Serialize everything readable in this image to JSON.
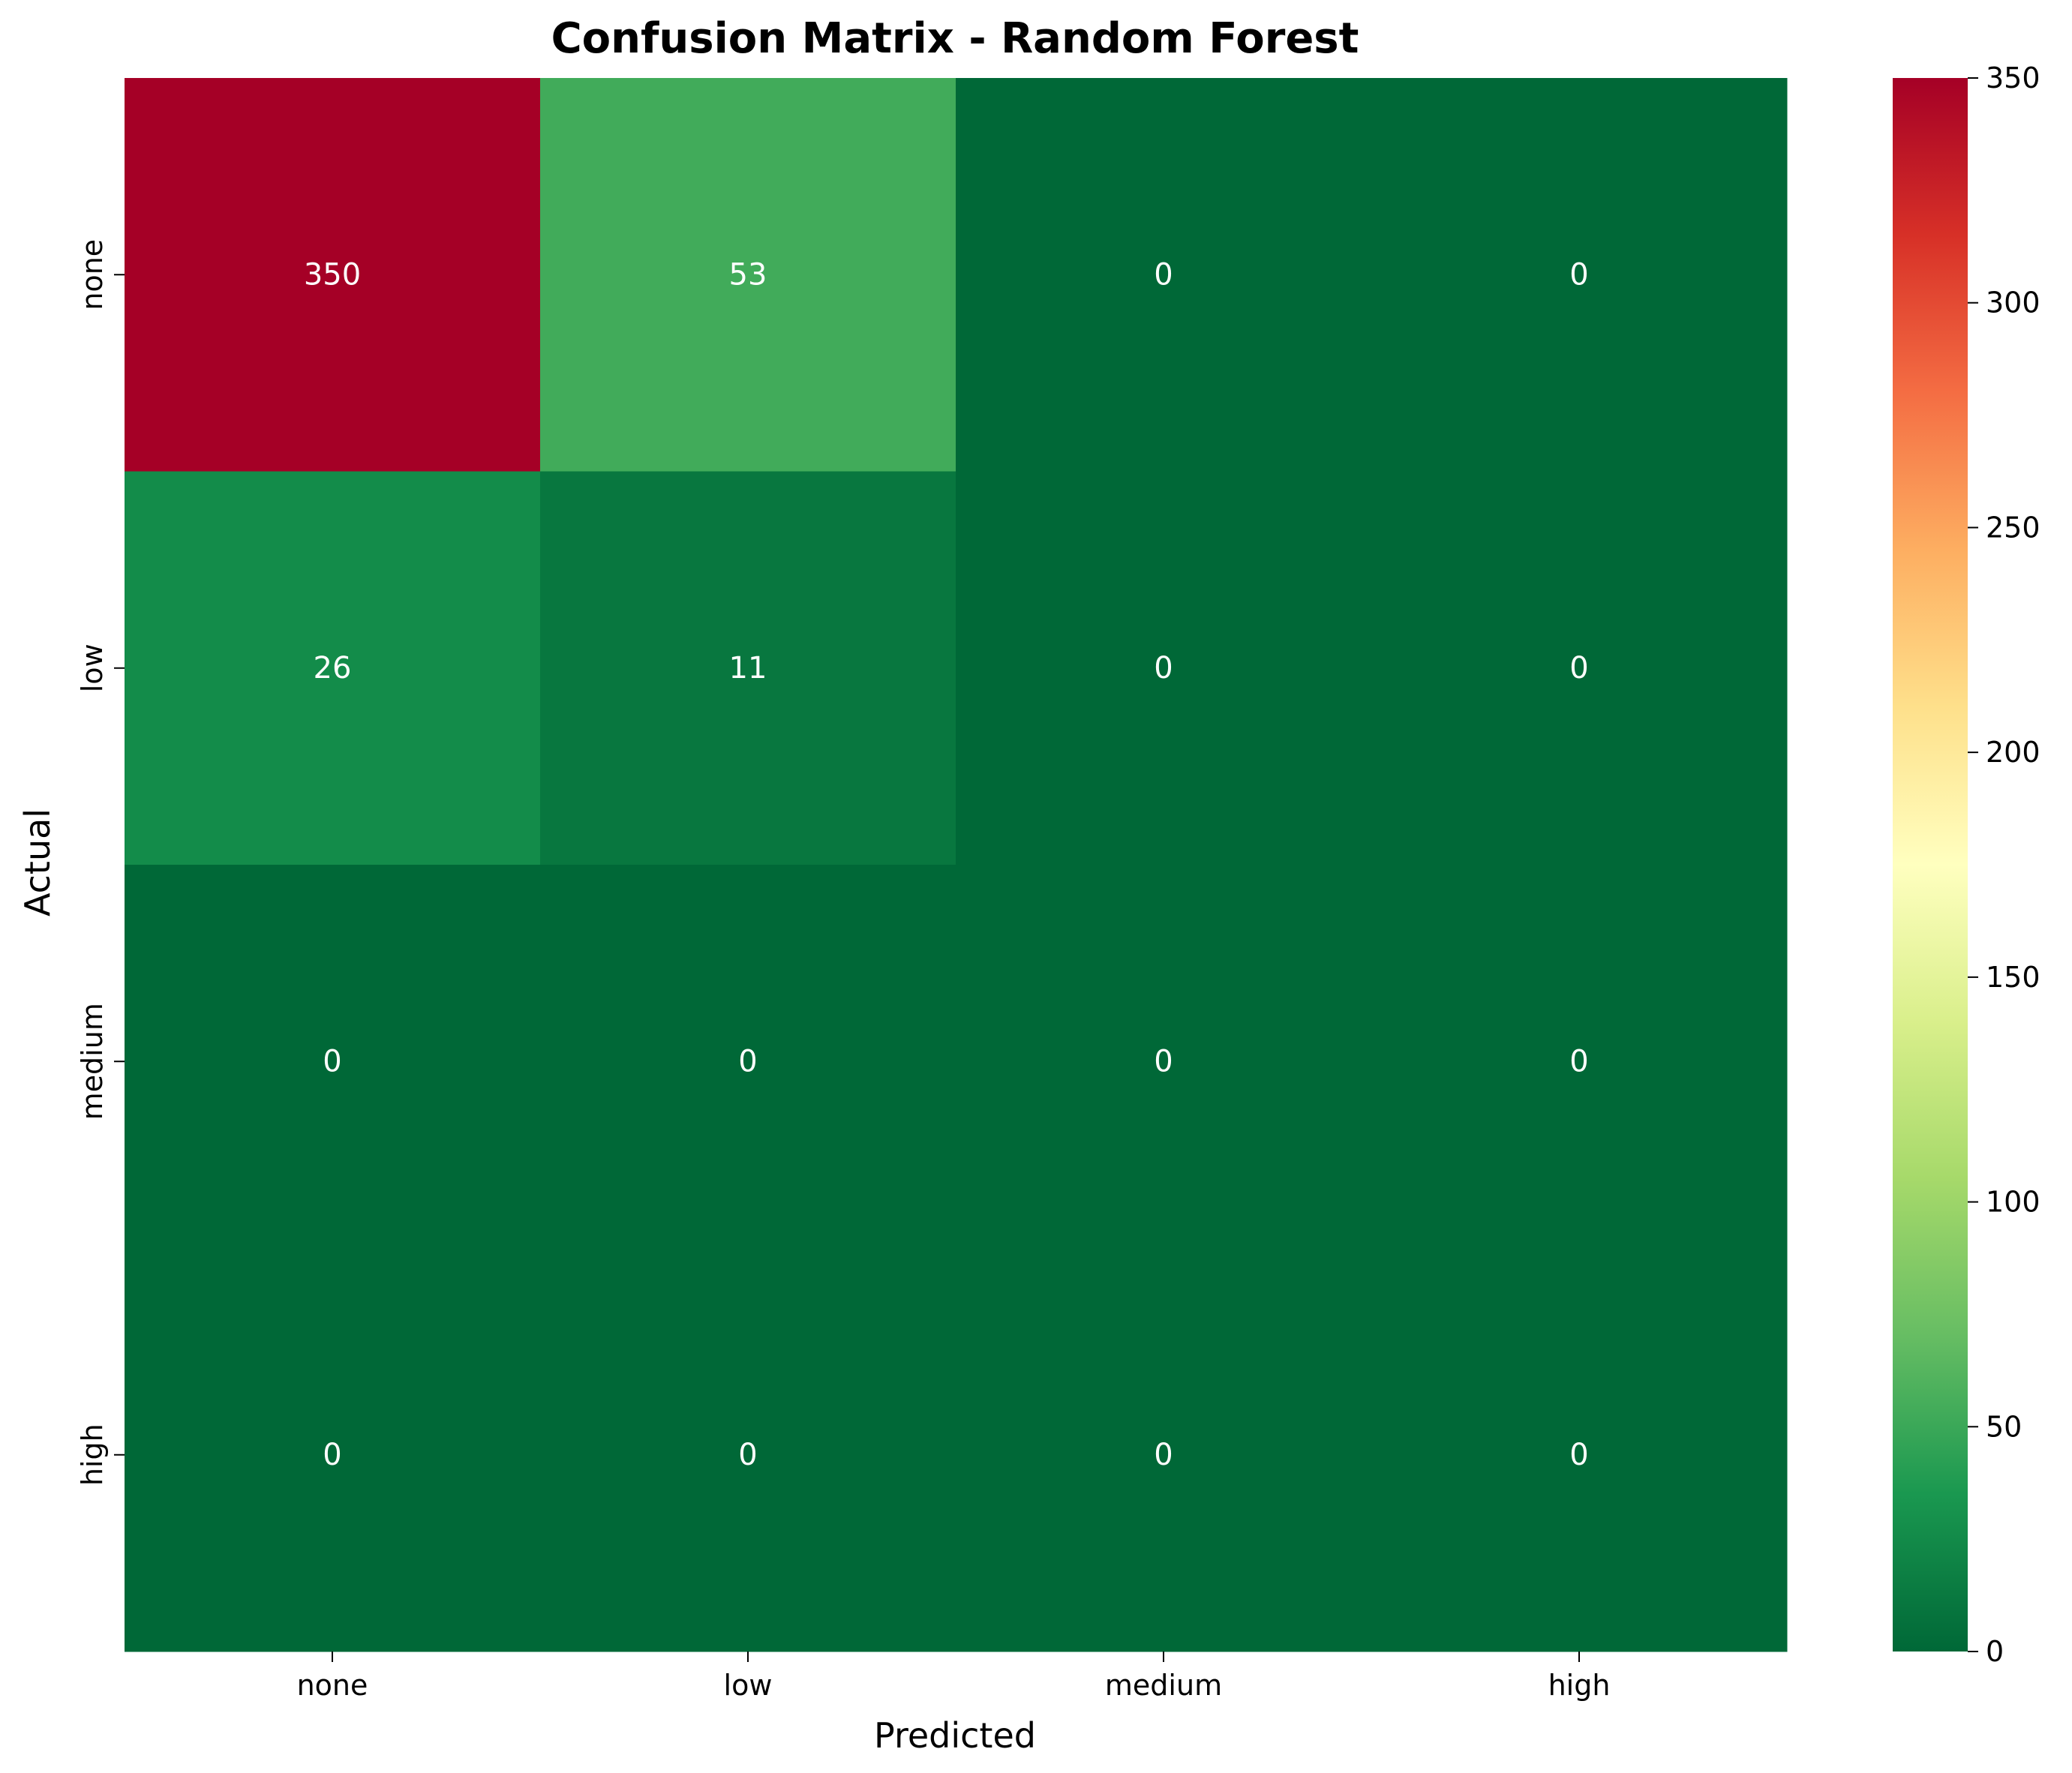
{
  "chart_data": {
    "type": "heatmap",
    "title": "Confusion Matrix - Random Forest",
    "xlabel": "Predicted",
    "ylabel": "Actual",
    "x_categories": [
      "none",
      "low",
      "medium",
      "high"
    ],
    "y_categories": [
      "none",
      "low",
      "medium",
      "high"
    ],
    "values": [
      [
        350,
        53,
        0,
        0
      ],
      [
        26,
        11,
        0,
        0
      ],
      [
        0,
        0,
        0,
        0
      ],
      [
        0,
        0,
        0,
        0
      ]
    ],
    "colorscale": "RdYlGn_r",
    "colorbar": {
      "range": [
        0,
        350
      ],
      "ticks": [
        0,
        50,
        100,
        150,
        200,
        250,
        300,
        350
      ]
    },
    "annotation_color": "#ffffff",
    "grid": false
  }
}
